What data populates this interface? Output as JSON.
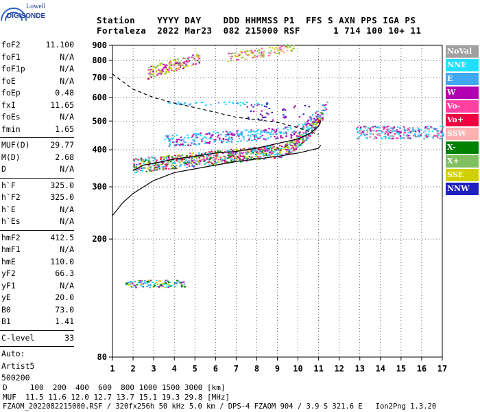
{
  "logo": {
    "line1": "Lowell",
    "line2": "DIGISONDE"
  },
  "header": {
    "row1": "Station    YYYY DAY    DDD HHMMSS P1  FFS S AXN PPS IGA PS",
    "row2": "Fortaleza  2022 Mar23  082 215000 RSF      1 714 100 10+ 11"
  },
  "params": [
    {
      "label": "foF2",
      "value": "11.100"
    },
    {
      "label": "foF1",
      "value": "N/A"
    },
    {
      "label": "foF1p",
      "value": "N/A"
    },
    {
      "label": "foE",
      "value": "N/A"
    },
    {
      "label": "foEp",
      "value": "0.48"
    },
    {
      "label": "fxI",
      "value": "11.65"
    },
    {
      "label": "foEs",
      "value": "N/A"
    },
    {
      "label": "fmin",
      "value": "1.65"
    },
    {
      "sep": true
    },
    {
      "label": "MUF(D)",
      "value": "29.77"
    },
    {
      "label": "M(D)",
      "value": "2.68"
    },
    {
      "label": "D",
      "value": "N/A"
    },
    {
      "sep": true
    },
    {
      "label": "h`F",
      "value": "325.0"
    },
    {
      "label": "h`F2",
      "value": "325.0"
    },
    {
      "label": "h`E",
      "value": "N/A"
    },
    {
      "label": "h`Es",
      "value": "N/A"
    },
    {
      "sep": true
    },
    {
      "label": "hmF2",
      "value": "412.5"
    },
    {
      "label": "hmF1",
      "value": "N/A"
    },
    {
      "label": "hmE",
      "value": "110.0"
    },
    {
      "label": "yF2",
      "value": "66.3"
    },
    {
      "label": "yF1",
      "value": "N/A"
    },
    {
      "label": "yE",
      "value": "20.0"
    },
    {
      "label": "B0",
      "value": "73.0"
    },
    {
      "label": "B1",
      "value": "1.41"
    },
    {
      "sep": true
    },
    {
      "label": "C-level",
      "value": "33"
    },
    {
      "sep": true
    },
    {
      "label": "Auto:",
      "value": ""
    },
    {
      "label": "Artist5",
      "value": ""
    },
    {
      "label": "500200",
      "value": ""
    }
  ],
  "footer": {
    "line1": "D     100  200  400  600  800 1000 1500 3000 [km]",
    "line2": "MUF  11.5 11.6 12.0 12.7 13.7 15.1 19.3 29.8 [MHz]",
    "line3": "FZAOM_2022082215000.RSF / 320fx256h 50 kHz 5.0 km / DPS-4 FZAOM 904 / 3.9 S 321.6 E   Ion2Png 1.3.20"
  },
  "legend": [
    {
      "label": "NoVal",
      "color": "#a0a0a0"
    },
    {
      "label": "NNE",
      "color": "#20e0ff"
    },
    {
      "label": "E",
      "color": "#40a8f0"
    },
    {
      "label": "W",
      "color": "#b000b0"
    },
    {
      "label": "Vo-",
      "color": "#ff40a0"
    },
    {
      "label": "Vo+",
      "color": "#f00040"
    },
    {
      "label": "SSW",
      "color": "#ffb0b0"
    },
    {
      "label": "X-",
      "color": "#008000"
    },
    {
      "label": "X+",
      "color": "#80c060"
    },
    {
      "label": "SSE",
      "color": "#d0d000"
    },
    {
      "label": "NNW",
      "color": "#2020c0"
    }
  ],
  "chart_data": {
    "type": "scatter",
    "x_range": [
      1,
      17
    ],
    "y_range": [
      80,
      900
    ],
    "x_ticks": [
      "1",
      "2",
      "3",
      "4",
      "5",
      "6",
      "7",
      "8",
      "9",
      "10",
      "11",
      "12",
      "13",
      "14",
      "15",
      "16",
      "17"
    ],
    "y_ticks": [
      "80",
      "200",
      "300",
      "400",
      "500",
      "600",
      "700",
      "800",
      "900"
    ],
    "y_scale": "log",
    "grid": true,
    "legend_position": "right",
    "profile_curve": {
      "x": [
        2.0,
        2.5,
        3.0,
        4.0,
        5.0,
        6.0,
        7.0,
        8.0,
        9.0,
        10.0,
        10.6,
        11.0,
        11.1
      ],
      "y": [
        340,
        355,
        360,
        372,
        380,
        390,
        395,
        405,
        420,
        435,
        455,
        480,
        500
      ]
    },
    "lower_curve": {
      "x": [
        1.0,
        1.5,
        2.0,
        3.0,
        4.0,
        5.0,
        6.0,
        7.0,
        8.0,
        9.0,
        10.0,
        10.7,
        11.0,
        11.1
      ],
      "y": [
        240,
        265,
        285,
        315,
        335,
        345,
        355,
        365,
        372,
        380,
        390,
        400,
        405,
        415
      ]
    },
    "dashed_curve": {
      "x": [
        1.0,
        2.0,
        3.0,
        4.0,
        5.0,
        6.0,
        7.0,
        8.0,
        9.0,
        10.0,
        11.0
      ],
      "y": [
        720,
        640,
        600,
        575,
        555,
        535,
        515,
        505,
        495,
        475,
        450
      ]
    }
  }
}
